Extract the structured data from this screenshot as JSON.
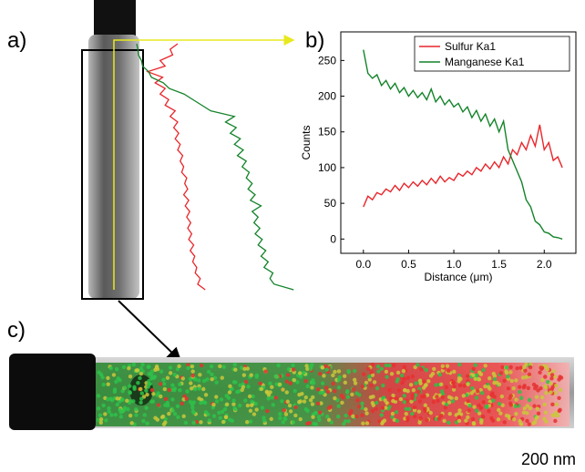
{
  "panel_labels": [
    "a)",
    "b)",
    "c)"
  ],
  "scale_bar": "200 nm",
  "chart_data": {
    "type": "line",
    "xlabel": "Distance (μm)",
    "ylabel": "Counts",
    "x": [
      0,
      0.05,
      0.1,
      0.15,
      0.2,
      0.25,
      0.3,
      0.35,
      0.4,
      0.45,
      0.5,
      0.55,
      0.6,
      0.65,
      0.7,
      0.75,
      0.8,
      0.85,
      0.9,
      0.95,
      1.0,
      1.05,
      1.1,
      1.15,
      1.2,
      1.25,
      1.3,
      1.35,
      1.4,
      1.45,
      1.5,
      1.55,
      1.6,
      1.65,
      1.7,
      1.75,
      1.8,
      1.85,
      1.9,
      1.95,
      2.0,
      2.05,
      2.1,
      2.15,
      2.2
    ],
    "series": [
      {
        "name": "Sulfur Ka1",
        "color": "#e8262b",
        "values": [
          45,
          60,
          55,
          65,
          62,
          70,
          66,
          75,
          68,
          78,
          72,
          80,
          74,
          82,
          76,
          85,
          78,
          88,
          80,
          86,
          82,
          92,
          88,
          95,
          90,
          100,
          95,
          105,
          98,
          108,
          100,
          115,
          105,
          125,
          118,
          135,
          125,
          145,
          130,
          160,
          125,
          135,
          110,
          115,
          100
        ]
      },
      {
        "name": "Manganese Ka1",
        "color": "#13832a",
        "values": [
          265,
          232,
          225,
          230,
          215,
          222,
          210,
          218,
          205,
          212,
          200,
          208,
          198,
          205,
          195,
          210,
          192,
          200,
          188,
          195,
          185,
          190,
          178,
          185,
          170,
          180,
          165,
          175,
          158,
          168,
          150,
          165,
          125,
          110,
          95,
          80,
          55,
          45,
          25,
          20,
          10,
          8,
          3,
          2,
          0
        ]
      }
    ],
    "xlim": [
      -0.25,
      2.35
    ],
    "ylim": [
      -20,
      290
    ],
    "xticks": [
      {
        "value": 0,
        "label": "0.0"
      },
      0.5,
      {
        "value": 1,
        "label": "1.0"
      },
      1.5,
      {
        "value": 2,
        "label": "2.0"
      }
    ],
    "yticks": [
      0,
      50,
      100,
      150,
      200,
      250
    ],
    "legend": "upper right"
  }
}
